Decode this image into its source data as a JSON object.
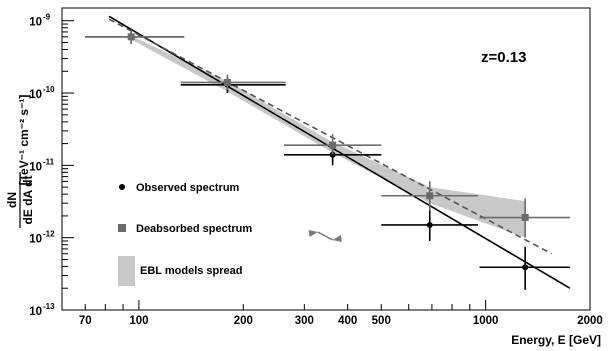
{
  "chart_data": {
    "type": "scatter",
    "x_scale": "log",
    "y_scale": "log",
    "xlim": [
      60,
      2000
    ],
    "ylim": [
      1e-13,
      1.5e-09
    ],
    "xlabel": "Energy, E [GeV]",
    "ylabel": {
      "numerator": "dN",
      "denominator": "dE dA dt",
      "unit": "[TeV⁻¹ cm⁻² s⁻¹]"
    },
    "x_tick_labels": [
      {
        "value": 70,
        "label": "70"
      },
      {
        "value": 100,
        "label": "100"
      },
      {
        "value": 200,
        "label": "200"
      },
      {
        "value": 300,
        "label": "300"
      },
      {
        "value": 400,
        "label": "400"
      },
      {
        "value": 500,
        "label": "500"
      },
      {
        "value": 1000,
        "label": "1000"
      },
      {
        "value": 2000,
        "label": "2000"
      }
    ],
    "y_tick_labels": [
      {
        "value": 1e-09,
        "base": "10",
        "exp": "-9"
      },
      {
        "value": 1e-10,
        "base": "10",
        "exp": "-10"
      },
      {
        "value": 1e-11,
        "base": "10",
        "exp": "-11"
      },
      {
        "value": 1e-12,
        "base": "10",
        "exp": "-12"
      },
      {
        "value": 1e-13,
        "base": "10",
        "exp": "-13"
      }
    ],
    "annotation": "z=0.13",
    "series": [
      {
        "name": "Observed spectrum",
        "marker": "circle",
        "color": "#000000",
        "points": [
          {
            "x": 95,
            "y": 6e-10,
            "xerr": [
              70,
              135
            ],
            "yerr": [
              4.8e-10,
              7.5e-10
            ]
          },
          {
            "x": 180,
            "y": 1.3e-10,
            "xerr": [
              132,
              265
            ],
            "yerr": [
              1e-10,
              1.65e-10
            ]
          },
          {
            "x": 362,
            "y": 1.4e-11,
            "xerr": [
              262,
              500
            ],
            "yerr": [
              1e-11,
              2e-11
            ]
          },
          {
            "x": 690,
            "y": 1.5e-12,
            "xerr": [
              500,
              950
            ],
            "yerr": [
              9e-13,
              2.4e-12
            ]
          },
          {
            "x": 1300,
            "y": 3.9e-13,
            "xerr": [
              960,
              1750
            ],
            "yerr": [
              1.9e-13,
              7.5e-13
            ]
          }
        ]
      },
      {
        "name": "Deabsorbed spectrum",
        "marker": "square",
        "color": "#6b6b6b",
        "points": [
          {
            "x": 95,
            "y": 6e-10,
            "xerr": [
              70,
              135
            ],
            "yerr": [
              4.8e-10,
              7.5e-10
            ]
          },
          {
            "x": 180,
            "y": 1.4e-10,
            "xerr": [
              132,
              265
            ],
            "yerr": [
              1.1e-10,
              1.8e-10
            ]
          },
          {
            "x": 362,
            "y": 1.9e-11,
            "xerr": [
              262,
              500
            ],
            "yerr": [
              1.4e-11,
              2.7e-11
            ]
          },
          {
            "x": 690,
            "y": 3.8e-12,
            "xerr": [
              500,
              950
            ],
            "yerr": [
              2.4e-12,
              6e-12
            ]
          },
          {
            "x": 1300,
            "y": 1.9e-12,
            "xerr": [
              960,
              1750
            ],
            "yerr": [
              1e-12,
              3.5e-12
            ]
          }
        ]
      }
    ],
    "fit_lines": [
      {
        "series": "Observed spectrum",
        "style": "solid",
        "color": "#000000",
        "x": [
          82,
          1750
        ],
        "y": [
          1.15e-09,
          2e-13
        ]
      },
      {
        "series": "Deabsorbed spectrum",
        "style": "dashed",
        "color": "#555555",
        "x": [
          82,
          1550
        ],
        "y": [
          1.05e-09,
          6e-13
        ]
      }
    ],
    "ebl_band": {
      "name": "EBL models spread",
      "color": "#c8c8c8",
      "x": [
        95,
        180,
        362,
        690,
        1300
      ],
      "y_low": [
        5.5e-10,
        1.05e-10,
        1.5e-11,
        3e-12,
        1e-12
      ],
      "y_high": [
        6.2e-10,
        1.45e-10,
        2.1e-11,
        5e-12,
        3.2e-12
      ]
    },
    "arrow": {
      "x_from": 260,
      "x_to": 400,
      "y": 4e-13
    }
  },
  "legend": {
    "items": [
      {
        "label": "Observed spectrum",
        "marker": "circle"
      },
      {
        "label": "Deabsorbed spectrum",
        "marker": "square"
      },
      {
        "label": "EBL models spread",
        "marker": "band"
      }
    ]
  }
}
